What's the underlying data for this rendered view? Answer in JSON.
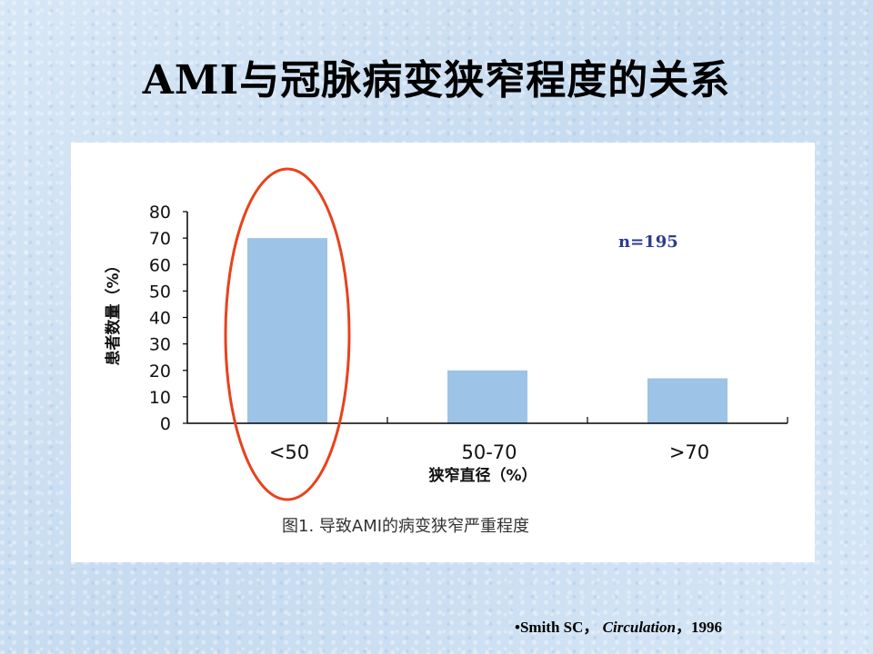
{
  "slide": {
    "title": "AMI与冠脉病变狭窄程度的关系",
    "citation": {
      "bullet": "•",
      "author": "Smith SC，",
      "journal": "Circulation",
      "year": "，1996"
    }
  },
  "chart_data": {
    "type": "bar",
    "categories": [
      "<50",
      "50-70",
      ">70"
    ],
    "values": [
      70,
      20,
      17
    ],
    "ylabel": "患者数量（%）",
    "xlabel": "狭窄直径（%）",
    "ylim": [
      0,
      80
    ],
    "yticks": [
      0,
      10,
      20,
      30,
      40,
      50,
      60,
      70,
      80
    ],
    "annotation": "n=195",
    "caption": "图1. 导致AMI的病变狭窄严重程度",
    "highlighted_category": "<50",
    "colors": {
      "bar": "#9dc3e6",
      "highlight": "#e8421c",
      "annotation": "#2b3c8f"
    },
    "grid": false
  }
}
